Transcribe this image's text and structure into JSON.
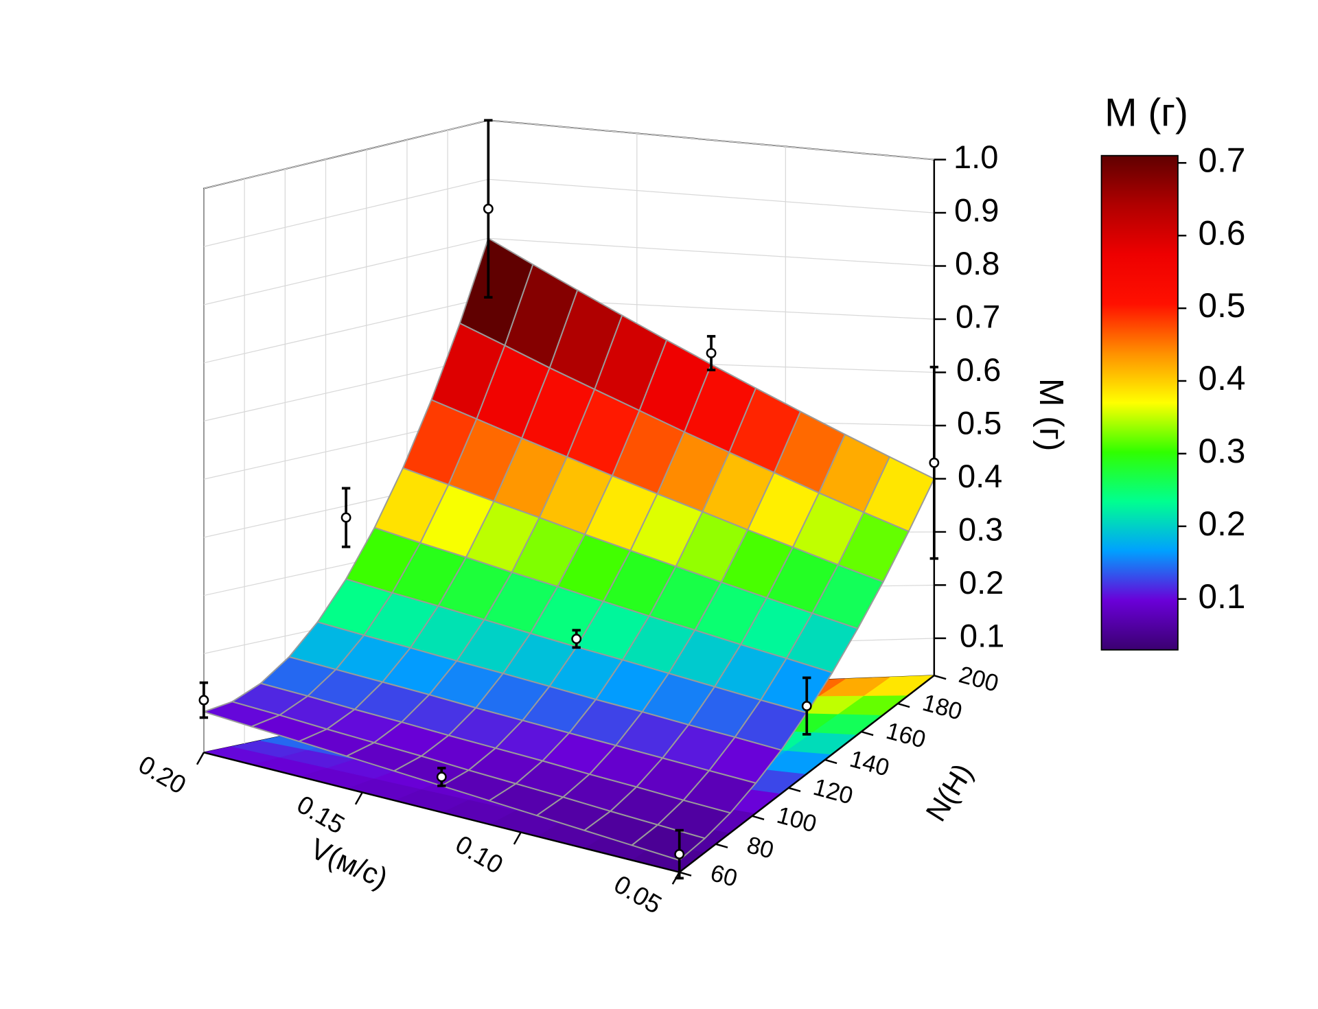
{
  "chart_data": {
    "type": "surface3d",
    "xlabel": "V(м/с)",
    "ylabel": "N(H)",
    "zlabel": "M (г)",
    "colorbar_title": "M (г)",
    "xlim": [
      0.05,
      0.2
    ],
    "ylim": [
      60,
      200
    ],
    "zlim": [
      0.03,
      1.0
    ],
    "clim": [
      0.03,
      0.71
    ],
    "xticks": [
      0.05,
      {
        "value": 0.1,
        "label": "0.10"
      },
      0.15,
      {
        "value": 0.2,
        "label": "0.20"
      }
    ],
    "yticks": [
      60,
      80,
      100,
      120,
      140,
      160,
      180,
      200
    ],
    "zticks": [
      0.1,
      0.2,
      0.3,
      0.4,
      0.5,
      0.6,
      0.7,
      0.8,
      0.9,
      {
        "value": 1,
        "label": "1.0"
      }
    ],
    "cticks": [
      0.1,
      0.2,
      0.3,
      0.4,
      0.5,
      0.6,
      0.7
    ],
    "colormap": [
      "#3a0070",
      "#6a00d8",
      "#00a0ff",
      "#00ff90",
      "#30ff00",
      "#ffff00",
      "#ff9000",
      "#ff1000",
      "#ee0000",
      "#b00000",
      "#600000"
    ],
    "grid": true,
    "x": [
      0.05,
      0.065,
      0.08,
      0.095,
      0.11,
      0.125,
      0.14,
      0.155,
      0.17,
      0.185,
      0.2
    ],
    "y": [
      60,
      74,
      88,
      102,
      116,
      130,
      144,
      158,
      172,
      186,
      200
    ],
    "z": [
      [
        0.05,
        0.054,
        0.064,
        0.082,
        0.106,
        0.138,
        0.176,
        0.222,
        0.274,
        0.334,
        0.4
      ],
      [
        0.055,
        0.059,
        0.07,
        0.09,
        0.117,
        0.151,
        0.194,
        0.244,
        0.301,
        0.367,
        0.44
      ],
      [
        0.06,
        0.064,
        0.077,
        0.098,
        0.127,
        0.165,
        0.211,
        0.266,
        0.329,
        0.4,
        0.48
      ],
      [
        0.065,
        0.07,
        0.083,
        0.106,
        0.138,
        0.179,
        0.229,
        0.288,
        0.356,
        0.434,
        0.52
      ],
      [
        0.07,
        0.075,
        0.09,
        0.114,
        0.148,
        0.193,
        0.246,
        0.31,
        0.384,
        0.467,
        0.56
      ],
      [
        0.075,
        0.08,
        0.096,
        0.122,
        0.159,
        0.206,
        0.264,
        0.332,
        0.411,
        0.5,
        0.6
      ],
      [
        0.08,
        0.086,
        0.102,
        0.13,
        0.17,
        0.22,
        0.282,
        0.354,
        0.438,
        0.534,
        0.64
      ],
      [
        0.085,
        0.091,
        0.109,
        0.139,
        0.18,
        0.234,
        0.299,
        0.377,
        0.466,
        0.567,
        0.68
      ],
      [
        0.09,
        0.096,
        0.115,
        0.147,
        0.191,
        0.248,
        0.317,
        0.399,
        0.493,
        0.6,
        0.72
      ],
      [
        0.095,
        0.102,
        0.122,
        0.155,
        0.201,
        0.261,
        0.334,
        0.421,
        0.521,
        0.634,
        0.76
      ],
      [
        0.1,
        0.107,
        0.128,
        0.163,
        0.212,
        0.275,
        0.352,
        0.443,
        0.548,
        0.667,
        0.8
      ]
    ],
    "points": [
      {
        "x": 0.2,
        "y": 60,
        "z": 0.12,
        "err": 0.03
      },
      {
        "x": 0.125,
        "y": 60,
        "z": 0.09,
        "err": 0.015
      },
      {
        "x": 0.05,
        "y": 60,
        "z": 0.06,
        "err": 0.04
      },
      {
        "x": 0.05,
        "y": 130,
        "z": 0.15,
        "err": 0.05
      },
      {
        "x": 0.05,
        "y": 200,
        "z": 0.43,
        "err": 0.18
      },
      {
        "x": 0.2,
        "y": 200,
        "z": 0.85,
        "err": 0.15
      },
      {
        "x": 0.2,
        "y": 130,
        "z": 0.38,
        "err": 0.05
      },
      {
        "x": 0.125,
        "y": 200,
        "z": 0.62,
        "err": 0.03
      },
      {
        "x": 0.125,
        "y": 130,
        "z": 0.22,
        "err": 0.015
      }
    ]
  }
}
